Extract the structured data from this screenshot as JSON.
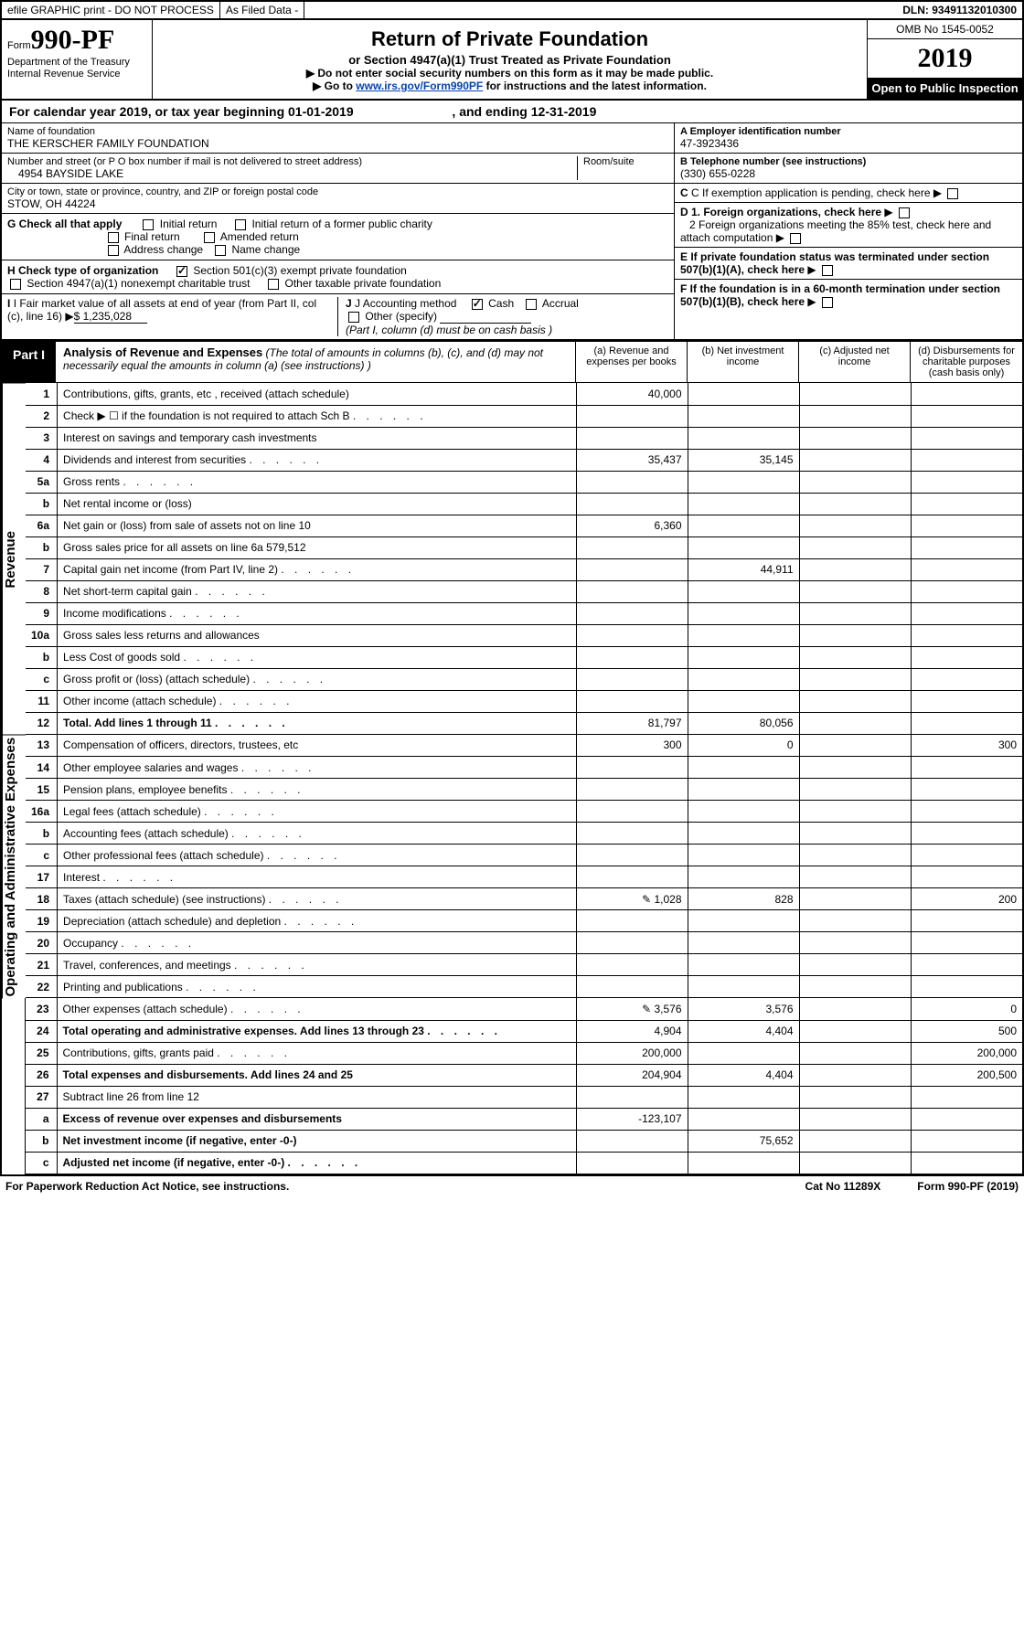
{
  "topbar": {
    "efile": "efile GRAPHIC print - DO NOT PROCESS",
    "asfiled": "As Filed Data -",
    "dln_label": "DLN:",
    "dln": "93491132010300"
  },
  "header": {
    "form_prefix": "Form",
    "form_number": "990-PF",
    "dept1": "Department of the Treasury",
    "dept2": "Internal Revenue Service",
    "title": "Return of Private Foundation",
    "subtitle": "or Section 4947(a)(1) Trust Treated as Private Foundation",
    "note1": "▶ Do not enter social security numbers on this form as it may be made public.",
    "note2_pre": "▶ Go to ",
    "note2_link": "www.irs.gov/Form990PF",
    "note2_post": " for instructions and the latest information.",
    "omb": "OMB No 1545-0052",
    "year": "2019",
    "inspect": "Open to Public Inspection"
  },
  "cal": {
    "prefix": "For calendar year 2019, or tax year beginning ",
    "begin": "01-01-2019",
    "mid": " , and ending ",
    "end": "12-31-2019"
  },
  "foundation": {
    "name_lbl": "Name of foundation",
    "name": "THE KERSCHER FAMILY FOUNDATION",
    "addr_lbl": "Number and street (or P O  box number if mail is not delivered to street address)",
    "room_lbl": "Room/suite",
    "addr": "4954 BAYSIDE LAKE",
    "city_lbl": "City or town, state or province, country, and ZIP or foreign postal code",
    "city": "STOW, OH  44224",
    "ein_lbl": "A Employer identification number",
    "ein": "47-3923436",
    "tel_lbl": "B Telephone number (see instructions)",
    "tel": "(330) 655-0228",
    "c_lbl": "C If exemption application is pending, check here",
    "d1": "D 1. Foreign organizations, check here",
    "d2": "2 Foreign organizations meeting the 85% test, check here and attach computation",
    "e": "E  If private foundation status was terminated under section 507(b)(1)(A), check here",
    "f": "F  If the foundation is in a 60-month termination under section 507(b)(1)(B), check here"
  },
  "checks": {
    "g_lbl": "G Check all that apply",
    "g_initial": "Initial return",
    "g_initial_former": "Initial return of a former public charity",
    "g_final": "Final return",
    "g_amended": "Amended return",
    "g_addr": "Address change",
    "g_name": "Name change",
    "h_lbl": "H Check type of organization",
    "h_501c3": "Section 501(c)(3) exempt private foundation",
    "h_4947": "Section 4947(a)(1) nonexempt charitable trust",
    "h_other": "Other taxable private foundation",
    "i_lbl": "I Fair market value of all assets at end of year (from Part II, col  (c), line 16)",
    "i_val": "$  1,235,028",
    "j_lbl": "J Accounting method",
    "j_cash": "Cash",
    "j_accrual": "Accrual",
    "j_other": "Other (specify)",
    "j_note": "(Part I, column (d) must be on cash basis )"
  },
  "part1": {
    "tag": "Part I",
    "title": "Analysis of Revenue and Expenses",
    "title_note": " (The total of amounts in columns (b), (c), and (d) may not necessarily equal the amounts in column (a) (see instructions) )",
    "col_a": "(a) Revenue and expenses per books",
    "col_b": "(b) Net investment income",
    "col_c": "(c) Adjusted net income",
    "col_d": "(d) Disbursements for charitable purposes (cash basis only)"
  },
  "sections": {
    "revenue": "Revenue",
    "opex": "Operating and Administrative Expenses"
  },
  "rows": [
    {
      "n": "1",
      "d": "Contributions, gifts, grants, etc , received (attach schedule)",
      "a": "40,000",
      "b": "",
      "c": "",
      "dv": ""
    },
    {
      "n": "2",
      "d": "Check ▶ ☐ if the foundation is not required to attach Sch  B",
      "a": "",
      "b": "",
      "c": "",
      "dv": "",
      "dots": true
    },
    {
      "n": "3",
      "d": "Interest on savings and temporary cash investments",
      "a": "",
      "b": "",
      "c": "",
      "dv": ""
    },
    {
      "n": "4",
      "d": "Dividends and interest from securities",
      "a": "35,437",
      "b": "35,145",
      "c": "",
      "dv": "",
      "dots": true
    },
    {
      "n": "5a",
      "d": "Gross rents",
      "a": "",
      "b": "",
      "c": "",
      "dv": "",
      "dots": true
    },
    {
      "n": "b",
      "d": "Net rental income or (loss)",
      "a": "",
      "b": "",
      "c": "",
      "dv": ""
    },
    {
      "n": "6a",
      "d": "Net gain or (loss) from sale of assets not on line 10",
      "a": "6,360",
      "b": "",
      "c": "",
      "dv": ""
    },
    {
      "n": "b",
      "d": "Gross sales price for all assets on line 6a          579,512",
      "a": "",
      "b": "",
      "c": "",
      "dv": ""
    },
    {
      "n": "7",
      "d": "Capital gain net income (from Part IV, line 2)",
      "a": "",
      "b": "44,911",
      "c": "",
      "dv": "",
      "dots": true
    },
    {
      "n": "8",
      "d": "Net short-term capital gain",
      "a": "",
      "b": "",
      "c": "",
      "dv": "",
      "dots": true
    },
    {
      "n": "9",
      "d": "Income modifications",
      "a": "",
      "b": "",
      "c": "",
      "dv": "",
      "dots": true
    },
    {
      "n": "10a",
      "d": "Gross sales less returns and allowances",
      "a": "",
      "b": "",
      "c": "",
      "dv": ""
    },
    {
      "n": "b",
      "d": "Less  Cost of goods sold",
      "a": "",
      "b": "",
      "c": "",
      "dv": "",
      "dots": true
    },
    {
      "n": "c",
      "d": "Gross profit or (loss) (attach schedule)",
      "a": "",
      "b": "",
      "c": "",
      "dv": "",
      "dots": true
    },
    {
      "n": "11",
      "d": "Other income (attach schedule)",
      "a": "",
      "b": "",
      "c": "",
      "dv": "",
      "dots": true
    },
    {
      "n": "12",
      "d": "Total. Add lines 1 through 11",
      "a": "81,797",
      "b": "80,056",
      "c": "",
      "dv": "",
      "bold": true,
      "dots": true
    },
    {
      "n": "13",
      "d": "Compensation of officers, directors, trustees, etc",
      "a": "300",
      "b": "0",
      "c": "",
      "dv": "300"
    },
    {
      "n": "14",
      "d": "Other employee salaries and wages",
      "a": "",
      "b": "",
      "c": "",
      "dv": "",
      "dots": true
    },
    {
      "n": "15",
      "d": "Pension plans, employee benefits",
      "a": "",
      "b": "",
      "c": "",
      "dv": "",
      "dots": true
    },
    {
      "n": "16a",
      "d": "Legal fees (attach schedule)",
      "a": "",
      "b": "",
      "c": "",
      "dv": "",
      "dots": true
    },
    {
      "n": "b",
      "d": "Accounting fees (attach schedule)",
      "a": "",
      "b": "",
      "c": "",
      "dv": "",
      "dots": true
    },
    {
      "n": "c",
      "d": "Other professional fees (attach schedule)",
      "a": "",
      "b": "",
      "c": "",
      "dv": "",
      "dots": true
    },
    {
      "n": "17",
      "d": "Interest",
      "a": "",
      "b": "",
      "c": "",
      "dv": "",
      "dots": true
    },
    {
      "n": "18",
      "d": "Taxes (attach schedule) (see instructions)",
      "a": "1,028",
      "b": "828",
      "c": "",
      "dv": "200",
      "dots": true,
      "icon": true
    },
    {
      "n": "19",
      "d": "Depreciation (attach schedule) and depletion",
      "a": "",
      "b": "",
      "c": "",
      "dv": "",
      "dots": true
    },
    {
      "n": "20",
      "d": "Occupancy",
      "a": "",
      "b": "",
      "c": "",
      "dv": "",
      "dots": true
    },
    {
      "n": "21",
      "d": "Travel, conferences, and meetings",
      "a": "",
      "b": "",
      "c": "",
      "dv": "",
      "dots": true
    },
    {
      "n": "22",
      "d": "Printing and publications",
      "a": "",
      "b": "",
      "c": "",
      "dv": "",
      "dots": true
    },
    {
      "n": "23",
      "d": "Other expenses (attach schedule)",
      "a": "3,576",
      "b": "3,576",
      "c": "",
      "dv": "0",
      "dots": true,
      "icon": true
    },
    {
      "n": "24",
      "d": "Total operating and administrative expenses. Add lines 13 through 23",
      "a": "4,904",
      "b": "4,404",
      "c": "",
      "dv": "500",
      "bold": true,
      "dots": true
    },
    {
      "n": "25",
      "d": "Contributions, gifts, grants paid",
      "a": "200,000",
      "b": "",
      "c": "",
      "dv": "200,000",
      "dots": true
    },
    {
      "n": "26",
      "d": "Total expenses and disbursements. Add lines 24 and 25",
      "a": "204,904",
      "b": "4,404",
      "c": "",
      "dv": "200,500",
      "bold": true
    },
    {
      "n": "27",
      "d": "Subtract line 26 from line 12",
      "a": "",
      "b": "",
      "c": "",
      "dv": ""
    },
    {
      "n": "a",
      "d": "Excess of revenue over expenses and disbursements",
      "a": "-123,107",
      "b": "",
      "c": "",
      "dv": "",
      "bold": true
    },
    {
      "n": "b",
      "d": "Net investment income (if negative, enter -0-)",
      "a": "",
      "b": "75,652",
      "c": "",
      "dv": "",
      "bold": true
    },
    {
      "n": "c",
      "d": "Adjusted net income (if negative, enter -0-)",
      "a": "",
      "b": "",
      "c": "",
      "dv": "",
      "bold": true,
      "dots": true
    }
  ],
  "footer": {
    "left": "For Paperwork Reduction Act Notice, see instructions.",
    "mid": "Cat  No  11289X",
    "right": "Form 990-PF (2019)"
  }
}
